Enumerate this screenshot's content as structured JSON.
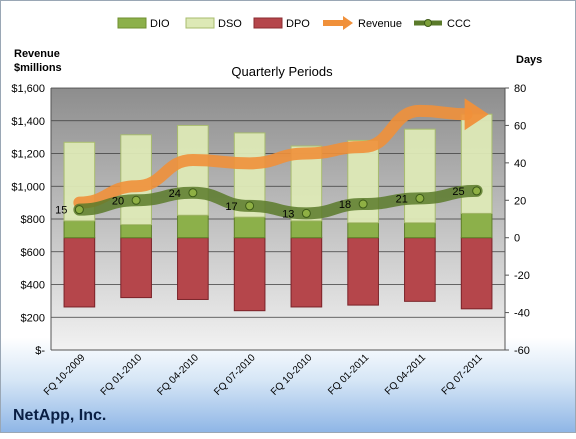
{
  "chart_data": {
    "type": "bar",
    "title": "Quarterly Periods",
    "company": "NetApp, Inc.",
    "y_left_label_line1": "Revenue",
    "y_left_label_line2": "$millions",
    "y_right_label": "Days",
    "categories": [
      "FQ 10-2009",
      "FQ 01-2010",
      "FQ 04-2010",
      "FQ 07-2010",
      "FQ 10-2010",
      "FQ 01-2011",
      "FQ 04-2011",
      "FQ 07-2011"
    ],
    "y_left_ticks": [
      "$-",
      "$200",
      "$400",
      "$600",
      "$800",
      "$1,000",
      "$1,200",
      "$1,400",
      "$1,600"
    ],
    "y_right_ticks": [
      "-60",
      "-40",
      "-20",
      "0",
      "20",
      "40",
      "60",
      "80"
    ],
    "ylim_left": [
      0,
      1600
    ],
    "ylim_right": [
      -60,
      80
    ],
    "grid": true,
    "legend_position": "top",
    "series": [
      {
        "name": "DIO",
        "axis": "right",
        "kind": "stacked-bar",
        "color": "#8cb04a",
        "values": [
          9,
          7,
          12,
          11,
          9,
          8,
          8,
          13
        ]
      },
      {
        "name": "DSO",
        "axis": "right",
        "kind": "stacked-bar",
        "color": "#dde9b6",
        "values": [
          42,
          48,
          48,
          45,
          40,
          44,
          50,
          53
        ]
      },
      {
        "name": "DPO",
        "axis": "right",
        "kind": "negative-bar",
        "color": "#b5464b",
        "values": [
          -37,
          -32,
          -33,
          -39,
          -37,
          -36,
          -34,
          -38
        ]
      },
      {
        "name": "Revenue",
        "axis": "left",
        "kind": "arrow-line",
        "color": "#f0903a",
        "values": [
          900,
          1000,
          1160,
          1140,
          1200,
          1240,
          1460,
          1440
        ]
      },
      {
        "name": "CCC",
        "axis": "right",
        "kind": "line",
        "color": "#5a7a2a",
        "values": [
          15,
          20,
          24,
          17,
          13,
          18,
          21,
          25
        ]
      }
    ],
    "ccc_labels": [
      "15",
      "20",
      "24",
      "17",
      "13",
      "18",
      "21",
      "25"
    ]
  }
}
